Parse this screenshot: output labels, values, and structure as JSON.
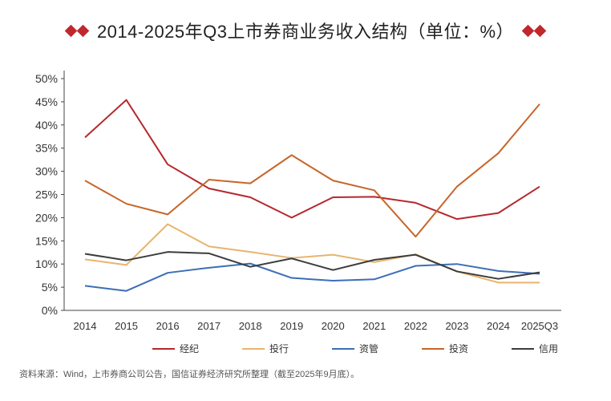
{
  "title": "2014-2025年Q3上市券商业务收入结构（单位：%）",
  "source": "资料来源：Wind，上市券商公司公告，国信证券经济研究所整理（截至2025年9月底）。",
  "chart_data": {
    "type": "line",
    "title": "2014-2025年Q3上市券商业务收入结构（单位：%）",
    "categories": [
      "2014",
      "2015",
      "2016",
      "2017",
      "2018",
      "2019",
      "2020",
      "2021",
      "2022",
      "2023",
      "2024",
      "2025Q3"
    ],
    "ylim": [
      0,
      50
    ],
    "yticks": [
      0,
      5,
      10,
      15,
      20,
      25,
      30,
      35,
      40,
      45,
      50
    ],
    "ytick_labels": [
      "0%",
      "5%",
      "10%",
      "15%",
      "20%",
      "25%",
      "30%",
      "35%",
      "40%",
      "45%",
      "50%"
    ],
    "grid": false,
    "legend_position": "bottom",
    "series": [
      {
        "name": "经纪",
        "color": "#b5282d",
        "values": [
          37.3,
          45.4,
          31.5,
          26.3,
          24.4,
          20.0,
          24.4,
          24.5,
          23.2,
          19.7,
          21.0,
          26.7
        ]
      },
      {
        "name": "投行",
        "color": "#e8b46e",
        "values": [
          11.0,
          9.8,
          18.6,
          13.8,
          12.6,
          11.3,
          12.0,
          10.4,
          12.1,
          8.4,
          6.0,
          6.0
        ]
      },
      {
        "name": "资管",
        "color": "#3d6eb5",
        "values": [
          5.3,
          4.2,
          8.1,
          9.2,
          10.1,
          7.0,
          6.4,
          6.7,
          9.6,
          10.0,
          8.5,
          7.9
        ]
      },
      {
        "name": "投资",
        "color": "#c6662a",
        "values": [
          28.0,
          23.0,
          20.7,
          28.2,
          27.4,
          33.5,
          28.0,
          25.9,
          15.9,
          26.7,
          33.9,
          44.5
        ]
      },
      {
        "name": "信用",
        "color": "#3c3c3c",
        "values": [
          12.2,
          10.8,
          12.6,
          12.3,
          9.4,
          11.2,
          8.7,
          10.9,
          12.0,
          8.4,
          6.8,
          8.2
        ]
      }
    ]
  }
}
